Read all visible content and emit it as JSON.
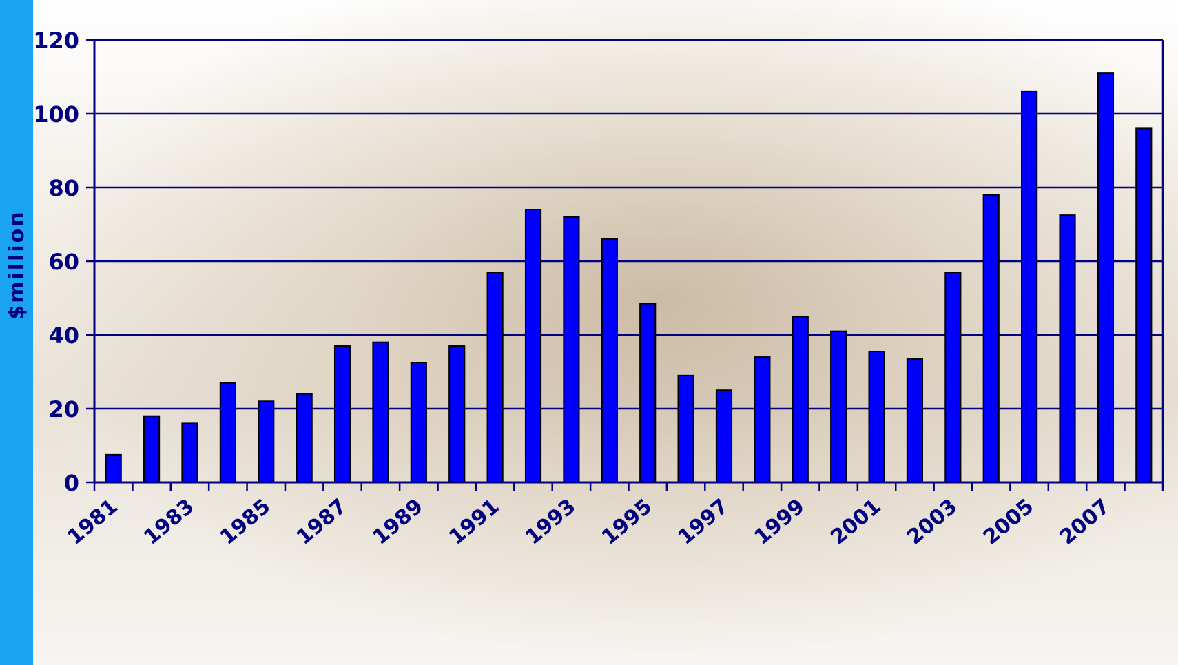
{
  "chart_data": {
    "type": "bar",
    "title": "",
    "xlabel": "",
    "ylabel": "$million",
    "ylim": [
      0,
      120
    ],
    "yticks": [
      0,
      20,
      40,
      60,
      80,
      100,
      120
    ],
    "grid": true,
    "categories": [
      "1981",
      "1982",
      "1983",
      "1984",
      "1985",
      "1986",
      "1987",
      "1988",
      "1989",
      "1990",
      "1991",
      "1992",
      "1993",
      "1994",
      "1995",
      "1996",
      "1997",
      "1998",
      "1999",
      "2000",
      "2001",
      "2002",
      "2003",
      "2004",
      "2005",
      "2006",
      "2007",
      "2008"
    ],
    "tick_labels": [
      "1981",
      "1983",
      "1985",
      "1987",
      "1989",
      "1991",
      "1993",
      "1995",
      "1997",
      "1999",
      "2001",
      "2003",
      "2005",
      "2007"
    ],
    "values": [
      7.5,
      18,
      16,
      27,
      22,
      24,
      37,
      38,
      32.5,
      37,
      57,
      74,
      72,
      66,
      48.5,
      29,
      25,
      34,
      45,
      41,
      35.5,
      33.5,
      57,
      78,
      106,
      72.5,
      111,
      96
    ],
    "colors": {
      "bar": "#0000ff",
      "bar_outline": "#000000",
      "axis": "#000080",
      "grid": "#000080",
      "text": "#000080",
      "side_strip": "#1aa3ee"
    }
  }
}
